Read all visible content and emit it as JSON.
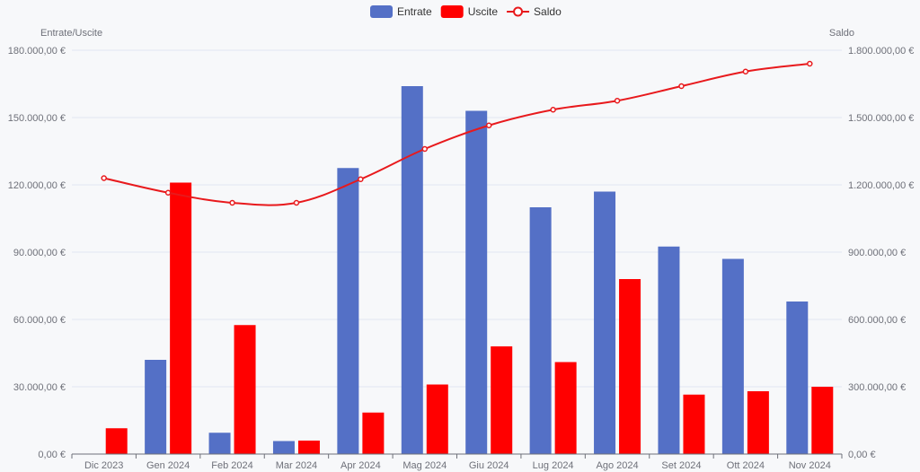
{
  "chart_data": {
    "type": "bar",
    "categories": [
      "Dic 2023",
      "Gen 2024",
      "Feb 2024",
      "Mar 2024",
      "Apr 2024",
      "Mag 2024",
      "Giu 2024",
      "Lug 2024",
      "Ago 2024",
      "Set 2024",
      "Ott 2024",
      "Nov 2024"
    ],
    "series": [
      {
        "name": "Entrate",
        "type": "bar",
        "axis": "left",
        "color": "#5470c6",
        "values": [
          0,
          42000,
          9500,
          5800,
          127500,
          164000,
          153000,
          110000,
          117000,
          92500,
          87000,
          68000
        ]
      },
      {
        "name": "Uscite",
        "type": "bar",
        "axis": "left",
        "color": "#ff0000",
        "values": [
          11500,
          121000,
          57500,
          6000,
          18500,
          31000,
          48000,
          41000,
          78000,
          26500,
          28000,
          30000
        ]
      },
      {
        "name": "Saldo",
        "type": "line",
        "axis": "right",
        "color": "#e8191c",
        "values": [
          1230000,
          1165000,
          1120000,
          1120000,
          1225000,
          1360000,
          1465000,
          1535000,
          1575000,
          1640000,
          1705000,
          1740000
        ]
      }
    ],
    "left_axis": {
      "name": "Entrate/Uscite",
      "range": [
        0,
        180000
      ],
      "ticks": [
        "0,00 €",
        "30.000,00 €",
        "60.000,00 €",
        "90.000,00 €",
        "120.000,00 €",
        "150.000,00 €",
        "180.000,00 €"
      ]
    },
    "right_axis": {
      "name": "Saldo",
      "range": [
        0,
        1800000
      ],
      "ticks": [
        "0,00 €",
        "300.000,00 €",
        "600.000,00 €",
        "900.000,00 €",
        "1.200.000,00 €",
        "1.500.000,00 €",
        "1.800.000,00 €"
      ]
    },
    "legend_position": "top-center",
    "grid": true
  }
}
